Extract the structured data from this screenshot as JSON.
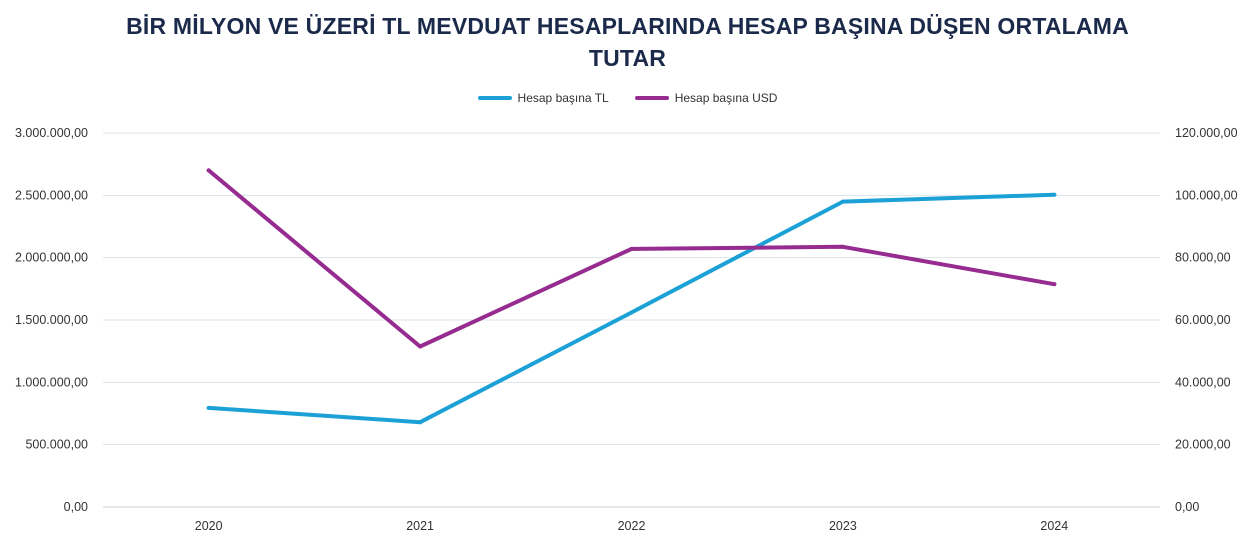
{
  "chart_data": {
    "type": "line",
    "title_line1": "BİR MİLYON VE ÜZERİ TL MEVDUAT HESAPLARINDA HESAP BAŞINA DÜŞEN ORTALAMA",
    "title_line2": "TUTAR",
    "categories": [
      "2020",
      "2021",
      "2022",
      "2023",
      "2024"
    ],
    "series": [
      {
        "name": "Hesap başına TL",
        "axis": "left",
        "color": "#1ba1d6",
        "values": [
          795000,
          680000,
          1560000,
          2450000,
          2505000
        ]
      },
      {
        "name": "Hesap başına USD",
        "axis": "right",
        "color": "#962b90",
        "values": [
          108000,
          51500,
          82800,
          83500,
          71500
        ]
      }
    ],
    "y_left": {
      "min": 0,
      "max": 3000000,
      "step": 500000,
      "tick_labels": [
        "0,00",
        "500.000,00",
        "1.000.000,00",
        "1.500.000,00",
        "2.000.000,00",
        "2.500.000,00",
        "3.000.000,00"
      ]
    },
    "y_right": {
      "min": 0,
      "max": 120000,
      "step": 20000,
      "tick_labels": [
        "0,00",
        "20.000,00",
        "40.000,00",
        "60.000,00",
        "80.000,00",
        "100.000,00",
        "120.000,00"
      ]
    },
    "grid": true,
    "legend_position": "top-center"
  }
}
